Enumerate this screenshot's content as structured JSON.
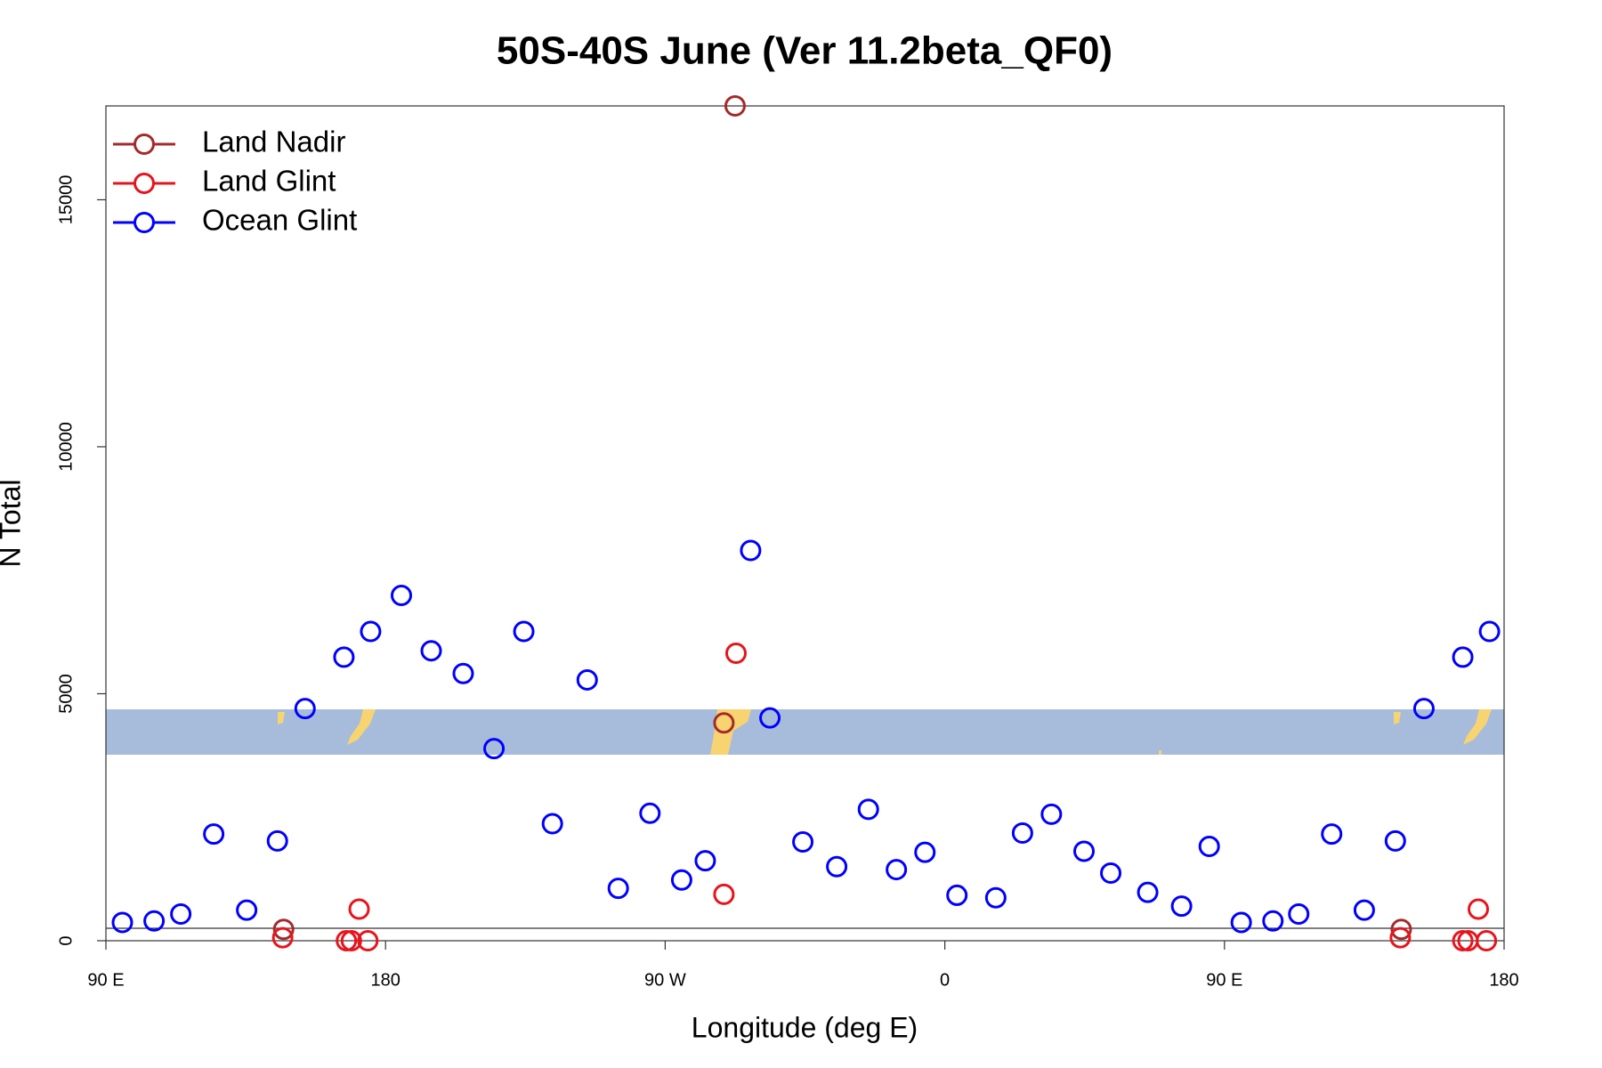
{
  "chart_data": {
    "type": "scatter",
    "title": "50S-40S June (Ver 11.2beta_QF0)",
    "x_label": "Longitude (deg E)",
    "y_label": "N Total",
    "xlim": [
      90,
      540
    ],
    "ylim": [
      0,
      16900
    ],
    "xticks": [
      {
        "value": 90,
        "label": "90 E"
      },
      180,
      {
        "value": 270,
        "label": "90 W"
      },
      {
        "value": 360,
        "label": "0"
      },
      {
        "value": 450,
        "label": "90 E"
      },
      {
        "value": 540,
        "label": "180"
      }
    ],
    "yticks": [
      0,
      5000,
      10000,
      15000
    ],
    "legend": "top-left",
    "series": [
      {
        "name": "Land Nadir",
        "color": "#a52a2a",
        "x": [
          292.5,
          288.9,
          147.2,
          506.9
        ],
        "values": [
          16900,
          4410,
          230,
          230
        ]
      },
      {
        "name": "Land Glint",
        "color": "#e8141c",
        "x": [
          292.8,
          288.9,
          171.5,
          146.9,
          167.4,
          169.0,
          174.3,
          531.7,
          506.6,
          526.7,
          528.4,
          534.3
        ],
        "values": [
          5820,
          940,
          640,
          60,
          0,
          0,
          0,
          640,
          60,
          0,
          0,
          0
        ]
      },
      {
        "name": "Ocean Glint",
        "color": "#0000ff",
        "x": [
          95.3,
          105.5,
          114.1,
          124.7,
          135.3,
          145.2,
          154.1,
          166.6,
          175.2,
          185.1,
          194.7,
          205.0,
          214.9,
          224.5,
          233.7,
          244.9,
          254.9,
          265.1,
          275.3,
          282.9,
          297.5,
          303.7,
          314.3,
          325.2,
          335.4,
          344.4,
          353.6,
          363.9,
          376.4,
          385.0,
          394.3,
          404.8,
          413.4,
          425.3,
          436.2,
          445.1,
          455.4,
          465.6,
          473.9,
          484.5,
          495.0,
          505.0,
          514.2,
          526.7,
          535.3
        ],
        "values": [
          370,
          400,
          540,
          2160,
          620,
          2020,
          4700,
          5740,
          6260,
          6990,
          5870,
          5410,
          3890,
          6260,
          2370,
          5280,
          1060,
          2580,
          1230,
          1620,
          7900,
          4510,
          2000,
          1500,
          2660,
          1440,
          1790,
          920,
          870,
          2180,
          2560,
          1810,
          1370,
          980,
          700,
          1910,
          370,
          400,
          540,
          2160,
          620,
          2020,
          4700,
          5740,
          6260
        ]
      }
    ]
  }
}
